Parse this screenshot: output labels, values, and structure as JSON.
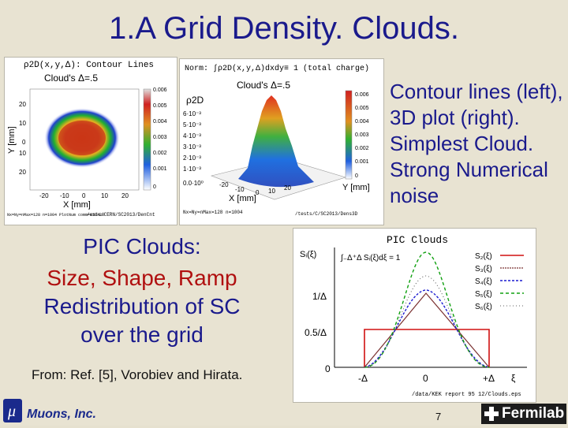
{
  "title": "1.A   Grid Density. Clouds.",
  "left_plot": {
    "header": "ρ2D(x,y,Δ): Contour Lines",
    "subheader": "Cloud's Δ=.5",
    "ylabel": "Y [mm]",
    "xlabel": "X [mm]",
    "y_ticks": [
      "20",
      "10",
      "0",
      "10",
      "20"
    ],
    "x_ticks": [
      "-20",
      "-10",
      "0",
      "10",
      "20"
    ],
    "colorbar_ticks": [
      "0.006",
      "0.005",
      "0.004",
      "0.003",
      "0.002",
      "0.001",
      "0"
    ],
    "footer_left": "Nx=Ny=nMax=128   n=1004\nPlotNum comm=150423",
    "footer_right": "/exts/CERN/SC2013/DenCnt"
  },
  "right_plot": {
    "norm": "Norm: ∫ρ2D(x,y,Δ)dxdy≡ 1 (total charge)",
    "subheader": "Cloud's Δ=.5",
    "zlabel": "ρ2D",
    "z_ticks": [
      "6·10⁻³",
      "5·10⁻³",
      "4·10⁻³",
      "3·10⁻³",
      "2·10⁻³",
      "1·10⁻³",
      "0.0·10⁰"
    ],
    "colorbar_ticks": [
      "0.006",
      "0.005",
      "0.004",
      "0.003",
      "0.002",
      "0.001",
      "0"
    ],
    "xlabel": "X [mm]",
    "ylabel": "Y [mm]",
    "x_ticks": [
      "-20",
      "-10",
      "0",
      "10",
      "20"
    ],
    "footer_left": "Nx=Ny=nMax=128  n=1004",
    "footer_right": "/tests/C/SC2013/Dens3D"
  },
  "description": "Contour lines (left), 3D plot (right).  Simplest Cloud. Strong Numerical noise",
  "pic_clouds": {
    "line1": "PIC Clouds:",
    "line2": "Size, Shape, Ramp",
    "line3": "Redistribution of SC",
    "line4": "over the grid"
  },
  "from_text": "From: Ref. [5], Vorobiev and Hirata.",
  "cloud_plot": {
    "title": "PIC Clouds",
    "formula_left": "Sᵢ(ξ)",
    "formula_integral": "∫₋Δ⁺Δ Sᵢ(ξ)dξ = 1",
    "y_ticks": [
      "1/Δ",
      "0.5/Δ",
      "0"
    ],
    "x_ticks": [
      "-Δ",
      "0",
      "+Δ",
      "ξ"
    ],
    "legend": [
      "S₂(ξ)",
      "S₃(ξ)",
      "S₄(ξ)",
      "S₅(ξ)",
      "S₆(ξ)"
    ],
    "legend_colors": [
      "#d01010",
      "#7a3030",
      "#1a1ad0",
      "#10a010",
      "#606060"
    ],
    "path": "/data/KEK report 95 12/Clouds.eps"
  },
  "footer": {
    "muons_logo": "μ",
    "muons": "Muons, Inc.",
    "page": "7",
    "fermilab": "Fermilab"
  }
}
